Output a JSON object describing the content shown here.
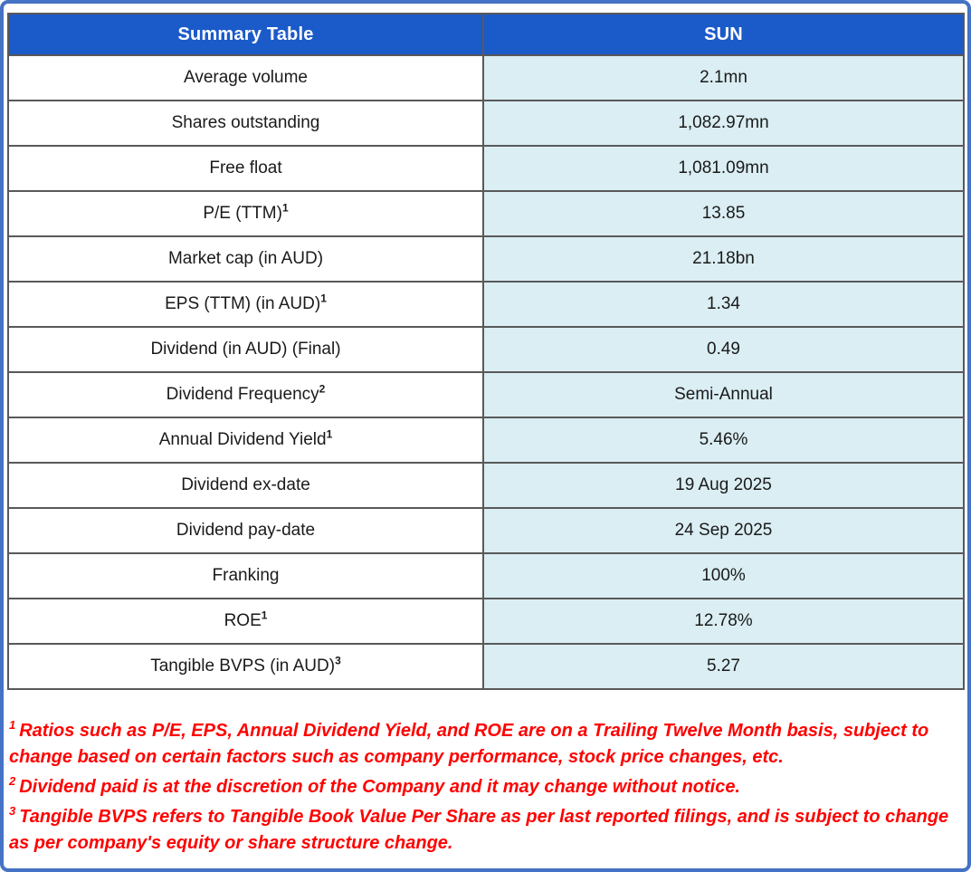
{
  "table": {
    "header": {
      "label": "Summary Table",
      "value": "SUN"
    },
    "rows": [
      {
        "label": "Average volume",
        "sup": "",
        "value": "2.1mn"
      },
      {
        "label": "Shares outstanding",
        "sup": "",
        "value": "1,082.97mn"
      },
      {
        "label": "Free float",
        "sup": "",
        "value": "1,081.09mn"
      },
      {
        "label": "P/E (TTM)",
        "sup": "1",
        "value": "13.85"
      },
      {
        "label": "Market cap (in AUD)",
        "sup": "",
        "value": "21.18bn"
      },
      {
        "label": "EPS (TTM) (in AUD)",
        "sup": "1",
        "value": "1.34"
      },
      {
        "label": "Dividend (in AUD) (Final)",
        "sup": "",
        "value": "0.49"
      },
      {
        "label": "Dividend Frequency",
        "sup": "2",
        "value": "Semi-Annual"
      },
      {
        "label": "Annual Dividend Yield",
        "sup": "1",
        "value": "5.46%"
      },
      {
        "label": "Dividend ex-date",
        "sup": "",
        "value": "19 Aug 2025"
      },
      {
        "label": "Dividend pay-date",
        "sup": "",
        "value": "24 Sep 2025"
      },
      {
        "label": "Franking",
        "sup": "",
        "value": "100%"
      },
      {
        "label": "ROE",
        "sup": "1",
        "value": "12.78%"
      },
      {
        "label": "Tangible BVPS (in AUD)",
        "sup": "3",
        "value": "5.27"
      }
    ]
  },
  "footnotes": [
    {
      "sup": "1",
      "text": "Ratios such as P/E, EPS, Annual Dividend Yield, and ROE are on a Trailing Twelve Month basis, subject to change based on certain factors such as company performance, stock price changes, etc."
    },
    {
      "sup": "2",
      "text": "Dividend paid is at the discretion of the Company and it may change without notice."
    },
    {
      "sup": "3",
      "text": "Tangible BVPS refers to Tangible Book Value Per Share as per last reported filings, and is subject to change as per company's equity or share structure change."
    }
  ],
  "colors": {
    "header_bg": "#1b5ac9",
    "header_text": "#ffffff",
    "label_cell_bg": "#ffffff",
    "value_cell_bg": "#daeef3",
    "grid_line": "#595959",
    "footnote_text": "#ff0000",
    "frame_border": "#4472c4"
  }
}
